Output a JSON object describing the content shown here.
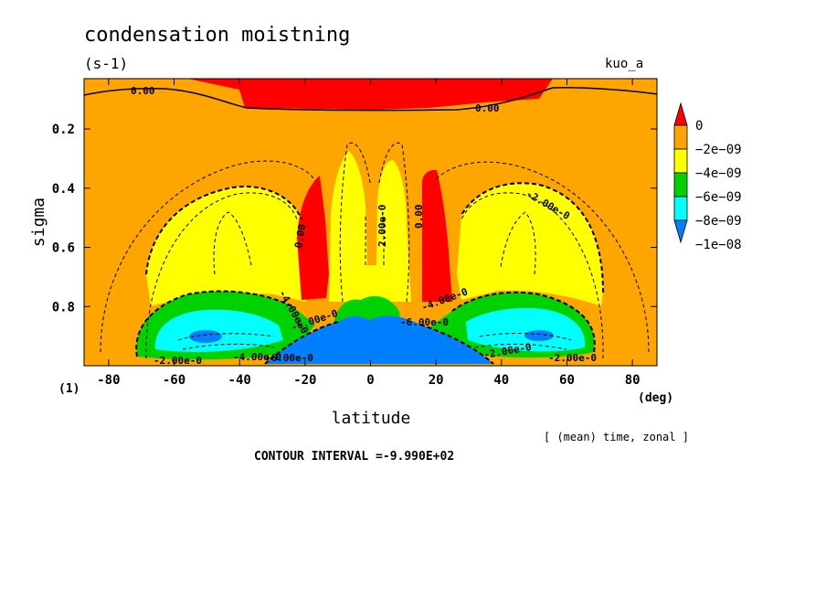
{
  "chart_data": {
    "type": "heatmap",
    "title": "condensation moistning",
    "units": "(s-1)",
    "experiment": "kuo_a",
    "xlabel": "latitude",
    "x_unit": "(deg)",
    "ylabel": "sigma",
    "footnote_left": "(1)",
    "average_note": "[ (mean) time, zonal ]",
    "contour_interval": "CONTOUR INTERVAL =-9.990E+02",
    "xlim": [
      -87.5,
      87.5
    ],
    "ylim": [
      1.0,
      0.03
    ],
    "xticks": [
      "-80",
      "-60",
      "-40",
      "-20",
      "0",
      "20",
      "40",
      "60",
      "80"
    ],
    "yticks": [
      "0.2",
      "0.4",
      "0.6",
      "0.8"
    ],
    "colorbar": {
      "levels": [
        "0",
        "−2e−09",
        "−4e−09",
        "−6e−09",
        "−8e−09",
        "−1e−08"
      ],
      "colors": [
        "#ff0000",
        "#ffa500",
        "#ffff00",
        "#00d200",
        "#00ffff",
        "#0080ff"
      ]
    },
    "contour_labels": [
      "0.00",
      "0.00",
      "-2.00e-0",
      "2.00e-0",
      "0.00",
      "0.00",
      "-2.00e-0",
      "-4.00e-0",
      "-4.00e-0",
      "-6.00e-0",
      "-6.00e-0",
      "-2.00e-0",
      "-4.00e-0",
      "-6.00e-0",
      "-2.00e-0"
    ]
  }
}
